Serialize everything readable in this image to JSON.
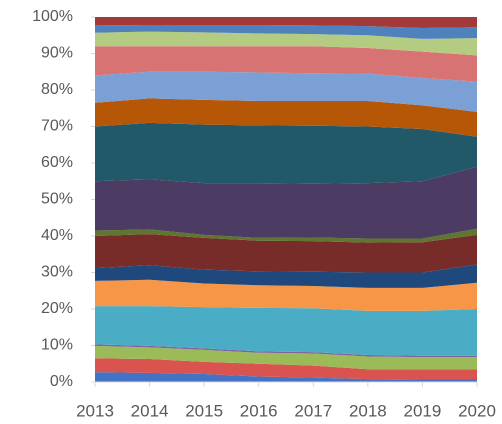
{
  "chart_data": {
    "type": "stacked_area_100",
    "x": [
      2013,
      2014,
      2015,
      2016,
      2017,
      2018,
      2019,
      2020
    ],
    "xlim": [
      2013,
      2020
    ],
    "xticks": [
      2013,
      2014,
      2015,
      2016,
      2017,
      2018,
      2019,
      2020
    ],
    "ylim": [
      0,
      100
    ],
    "yticks": [
      {
        "value": 0,
        "label": "0%"
      },
      {
        "value": 10,
        "label": "10%"
      },
      {
        "value": 20,
        "label": "20%"
      },
      {
        "value": 30,
        "label": "30%"
      },
      {
        "value": 40,
        "label": "40%"
      },
      {
        "value": 50,
        "label": "50%"
      },
      {
        "value": 60,
        "label": "60%"
      },
      {
        "value": 70,
        "label": "70%"
      },
      {
        "value": 80,
        "label": "80%"
      },
      {
        "value": 90,
        "label": "90%"
      },
      {
        "value": 100,
        "label": "100%"
      }
    ],
    "series": [
      {
        "color": "#4472c4",
        "values": [
          2.7,
          2.5,
          2.2,
          1.5,
          1.2,
          0.8,
          0.7,
          0.7
        ]
      },
      {
        "color": "#d9534f",
        "values": [
          3.8,
          3.8,
          3.3,
          3.5,
          3.3,
          2.7,
          2.8,
          2.8
        ]
      },
      {
        "color": "#9bbb59",
        "values": [
          3.4,
          3.2,
          3.3,
          3.0,
          3.3,
          3.5,
          3.3,
          3.3
        ]
      },
      {
        "color": "#8064a2",
        "values": [
          0.4,
          0.4,
          0.4,
          0.4,
          0.4,
          0.4,
          0.4,
          0.4
        ]
      },
      {
        "color": "#4bacc6",
        "values": [
          10.5,
          10.9,
          11.3,
          11.9,
          12.0,
          12.1,
          12.3,
          12.8
        ]
      },
      {
        "color": "#f79646",
        "values": [
          6.9,
          7.2,
          6.5,
          6.2,
          6.1,
          6.3,
          6.3,
          7.2
        ]
      },
      {
        "color": "#1f497d",
        "values": [
          3.5,
          4.0,
          3.8,
          3.8,
          3.9,
          4.2,
          4.2,
          5.0
        ]
      },
      {
        "color": "#772c2a",
        "values": [
          8.8,
          8.5,
          8.7,
          8.4,
          8.4,
          8.2,
          8.3,
          8.1
        ]
      },
      {
        "color": "#5f7530",
        "values": [
          1.5,
          1.3,
          0.8,
          0.8,
          1.0,
          1.1,
          1.0,
          1.7
        ]
      },
      {
        "color": "#4c3b62",
        "values": [
          13.5,
          13.7,
          14.2,
          15.0,
          14.7,
          15.2,
          15.7,
          17.0
        ]
      },
      {
        "color": "#215968",
        "values": [
          15.0,
          15.5,
          16.0,
          15.8,
          15.9,
          15.5,
          14.3,
          8.2
        ]
      },
      {
        "color": "#b65708",
        "values": [
          6.5,
          6.7,
          6.8,
          6.7,
          6.8,
          7.0,
          6.5,
          6.8
        ]
      },
      {
        "color": "#7ba0d5",
        "values": [
          7.5,
          7.3,
          7.7,
          7.8,
          7.6,
          7.5,
          7.5,
          8.3
        ]
      },
      {
        "color": "#d87373",
        "values": [
          8.0,
          7.0,
          7.0,
          7.2,
          7.4,
          7.0,
          7.2,
          7.2
        ]
      },
      {
        "color": "#b3cc82",
        "values": [
          3.7,
          4.0,
          3.8,
          3.5,
          3.3,
          3.5,
          3.5,
          4.7
        ]
      },
      {
        "color": "#4f81bd",
        "values": [
          2.0,
          1.8,
          2.0,
          2.3,
          2.4,
          2.5,
          3.0,
          3.0
        ]
      },
      {
        "color": "#a33a3a",
        "values": [
          2.3,
          2.2,
          2.2,
          2.2,
          2.3,
          2.5,
          3.0,
          2.8
        ]
      }
    ]
  }
}
